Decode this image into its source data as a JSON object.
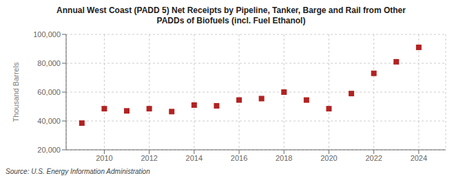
{
  "chart_data": {
    "type": "scatter",
    "title": "Annual West Coast (PADD 5) Net Receipts by Pipeline, Tanker, Barge and Rail from Other\nPADDs of Biofuels (incl. Fuel Ethanol)",
    "ylabel": "Thousand Barrels",
    "source": "Source: U.S. Energy Information Administration",
    "x": [
      2009,
      2010,
      2011,
      2012,
      2013,
      2014,
      2015,
      2016,
      2017,
      2018,
      2019,
      2020,
      2021,
      2022,
      2023,
      2024
    ],
    "values": [
      38500,
      48500,
      47000,
      48500,
      46500,
      51000,
      50500,
      54500,
      55500,
      60000,
      54500,
      48500,
      59000,
      73000,
      81000,
      91000
    ],
    "color": "#b22222",
    "marker": "square",
    "xlim": [
      2008.3,
      2025.2
    ],
    "xticks": [
      2010,
      2012,
      2014,
      2016,
      2018,
      2020,
      2022,
      2024
    ],
    "ylim": [
      20000,
      100000
    ],
    "yticks": [
      {
        "value": 20000,
        "label": "20,000"
      },
      {
        "value": 40000,
        "label": "40,000"
      },
      {
        "value": 60000,
        "label": "60,000"
      },
      {
        "value": 80000,
        "label": "80,000"
      },
      {
        "value": 100000,
        "label": "100,000"
      }
    ],
    "grid": true
  }
}
